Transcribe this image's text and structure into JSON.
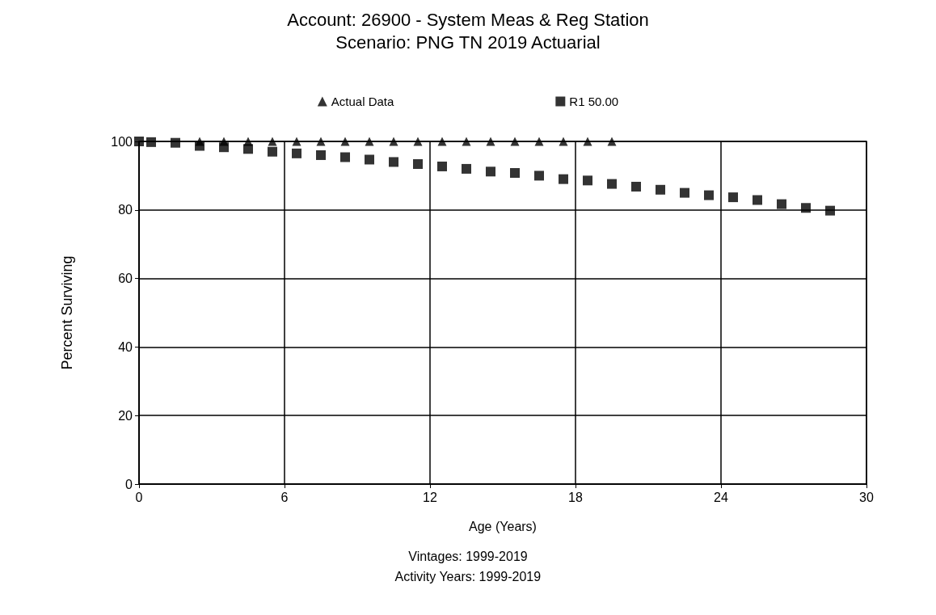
{
  "chart_data": {
    "type": "scatter",
    "title": "Account: 26900 - System Meas & Reg Station",
    "subtitle": "Scenario: PNG TN 2019 Actuarial",
    "xlabel": "Age (Years)",
    "ylabel": "Percent Surviving",
    "annotations": [
      "Vintages: 1999-2019",
      "Activity Years: 1999-2019"
    ],
    "series": [
      {
        "name": "Actual Data",
        "color": "#000000",
        "marker": "triangle",
        "x": [
          2.5,
          3.5,
          4.5,
          5.5,
          6.5,
          7.5,
          8.5,
          9.5,
          10.5,
          11.5,
          12.5,
          13.5,
          14.5,
          15.5,
          16.5,
          17.5,
          18.5,
          19.5
        ],
        "values": [
          100,
          100,
          100,
          100,
          100,
          100,
          100,
          100,
          100,
          100,
          100,
          100,
          100,
          100,
          100,
          100,
          100,
          100
        ]
      },
      {
        "name": "R1 50.00",
        "color": "#000000",
        "marker": "square",
        "x": [
          0,
          0.5,
          1.5,
          2.5,
          3.5,
          4.5,
          5.5,
          6.5,
          7.5,
          8.5,
          9.5,
          10.5,
          11.5,
          12.5,
          13.5,
          14.5,
          15.5,
          16.5,
          17.5,
          18.5,
          19.5,
          20.5,
          21.5,
          22.5,
          23.5,
          24.5,
          25.5,
          26.5,
          27.5,
          28.5
        ],
        "values": [
          100,
          99.8,
          99.6,
          98.7,
          98.3,
          97.8,
          97.0,
          96.5,
          96.0,
          95.4,
          94.7,
          94.0,
          93.4,
          92.7,
          92.0,
          91.2,
          90.8,
          90.0,
          89.0,
          88.6,
          87.6,
          86.8,
          85.9,
          85.0,
          84.3,
          83.7,
          82.9,
          81.7,
          80.6,
          79.8
        ]
      }
    ],
    "xlim": [
      0,
      30
    ],
    "xticks": [
      0,
      6,
      12,
      18,
      24,
      30
    ],
    "ylim": [
      0,
      100
    ],
    "yticks": [
      0,
      20,
      40,
      60,
      80,
      100
    ],
    "grid": true,
    "legend": "top"
  }
}
